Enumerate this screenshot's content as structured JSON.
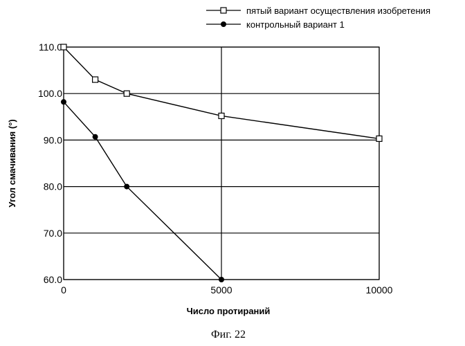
{
  "chart_data": {
    "type": "line",
    "xlabel": "Число протираний",
    "ylabel": "Угол смачивания (°)",
    "xlim": [
      0,
      10000
    ],
    "ylim": [
      60,
      110
    ],
    "xticks": [
      0,
      5000,
      10000
    ],
    "xtick_labels": [
      "0",
      "5000",
      "10000"
    ],
    "yticks": [
      60,
      70,
      80,
      90,
      100,
      110
    ],
    "ytick_labels": [
      "60.0",
      "70.0",
      "80.0",
      "90.0",
      "100.0",
      "110.0"
    ],
    "grid": true,
    "legend_position": "top",
    "series": [
      {
        "name": "пятый вариант осуществления изобретения",
        "marker": "open-square",
        "color": "#000000",
        "x": [
          0,
          1000,
          2000,
          5000,
          10000
        ],
        "y": [
          110.0,
          103.0,
          100.0,
          95.2,
          90.3
        ]
      },
      {
        "name": "контрольный вариант 1",
        "marker": "filled-circle",
        "color": "#000000",
        "x": [
          0,
          1000,
          2000,
          5000
        ],
        "y": [
          98.2,
          90.7,
          80.0,
          60.0
        ]
      }
    ]
  },
  "caption": "Фиг. 22"
}
